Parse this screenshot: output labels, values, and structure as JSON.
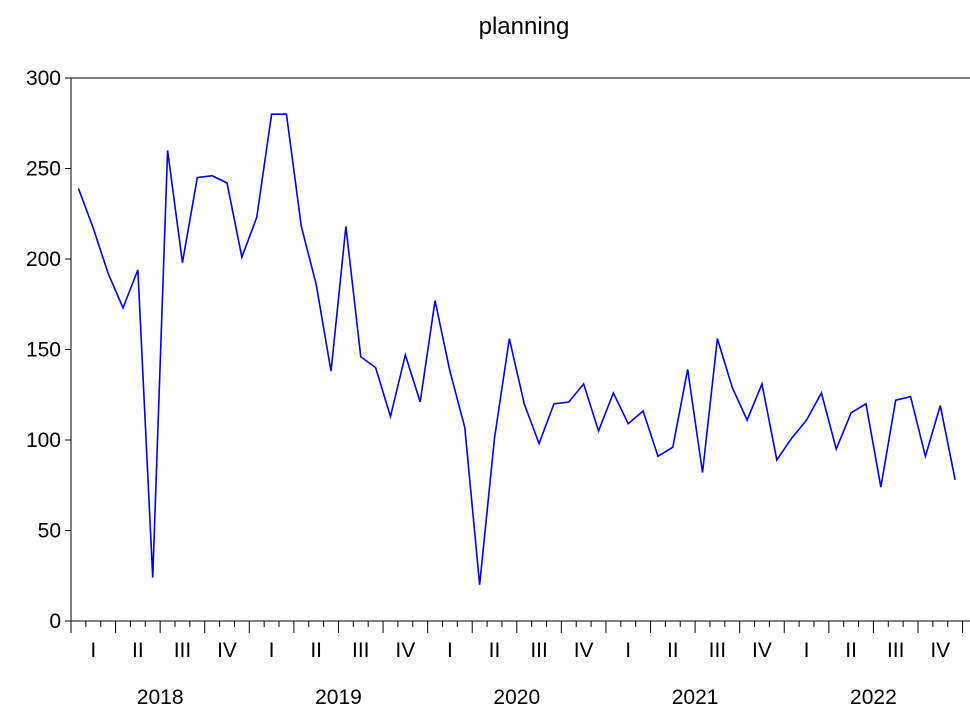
{
  "chart_data": {
    "type": "line",
    "title": "planning",
    "xlabel": "",
    "ylabel": "",
    "ylim": [
      0,
      300
    ],
    "yticks": [
      0,
      50,
      100,
      150,
      200,
      250,
      300
    ],
    "grid": false,
    "legend": "none",
    "frequency": "monthly",
    "start": "2018-01",
    "end": "2022-12",
    "quarter_labels": [
      "I",
      "II",
      "III",
      "IV"
    ],
    "years": [
      "2018",
      "2019",
      "2020",
      "2021",
      "2022"
    ],
    "series": [
      {
        "color": "#0000ee",
        "x": [
          "2018-01",
          "2018-02",
          "2018-03",
          "2018-04",
          "2018-05",
          "2018-06",
          "2018-07",
          "2018-08",
          "2018-09",
          "2018-10",
          "2018-11",
          "2018-12",
          "2019-01",
          "2019-02",
          "2019-03",
          "2019-04",
          "2019-05",
          "2019-06",
          "2019-07",
          "2019-08",
          "2019-09",
          "2019-10",
          "2019-11",
          "2019-12",
          "2020-01",
          "2020-02",
          "2020-03",
          "2020-04",
          "2020-05",
          "2020-06",
          "2020-07",
          "2020-08",
          "2020-09",
          "2020-10",
          "2020-11",
          "2020-12",
          "2021-01",
          "2021-02",
          "2021-03",
          "2021-04",
          "2021-05",
          "2021-06",
          "2021-07",
          "2021-08",
          "2021-09",
          "2021-10",
          "2021-11",
          "2021-12",
          "2022-01",
          "2022-02",
          "2022-03",
          "2022-04",
          "2022-05",
          "2022-06",
          "2022-07",
          "2022-08",
          "2022-09",
          "2022-10",
          "2022-11",
          "2022-12"
        ],
        "values": [
          239,
          217,
          192,
          173,
          194,
          24,
          260,
          198,
          245,
          246,
          242,
          201,
          223,
          280,
          280,
          218,
          186,
          138,
          218,
          146,
          140,
          113,
          147,
          121,
          177,
          138,
          107,
          20,
          101,
          156,
          120,
          98,
          120,
          121,
          131,
          105,
          126,
          109,
          116,
          91,
          96,
          139,
          82,
          156,
          129,
          111,
          131,
          89,
          101,
          111,
          126,
          95,
          115,
          120,
          74,
          122,
          124,
          91,
          119,
          78
        ]
      }
    ]
  }
}
